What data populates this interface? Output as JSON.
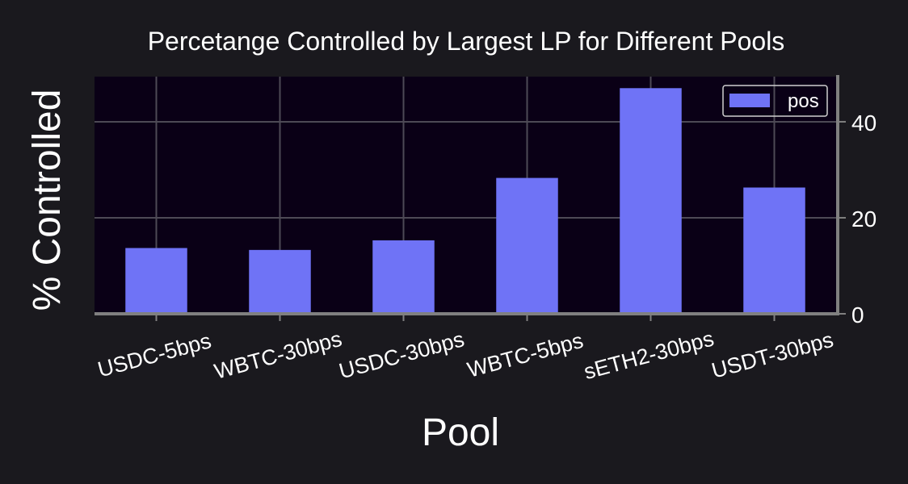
{
  "chart_data": {
    "type": "bar",
    "title": "Percetange Controlled by Largest LP for Different Pools",
    "xlabel": "Pool",
    "ylabel": "% Controlled",
    "categories": [
      "USDC-5bps",
      "WBTC-30bps",
      "USDC-30bps",
      "WBTC-5bps",
      "sETH2-30bps",
      "USDT-30bps"
    ],
    "series": [
      {
        "name": "pos",
        "values": [
          13.7,
          13.3,
          15.3,
          28.3,
          47.0,
          26.3
        ]
      }
    ],
    "ylim": [
      0,
      49.4
    ],
    "yticks": [
      0,
      20,
      40
    ],
    "y_axis_side": "right",
    "grid": true,
    "legend_position": "top-right",
    "colors": {
      "bar": "#6f73f6",
      "figure_background": "#1a191e",
      "plot_background": "#0a0016",
      "grid": "#4d4a55",
      "axis": "#808080",
      "text": "#ffffff"
    }
  }
}
